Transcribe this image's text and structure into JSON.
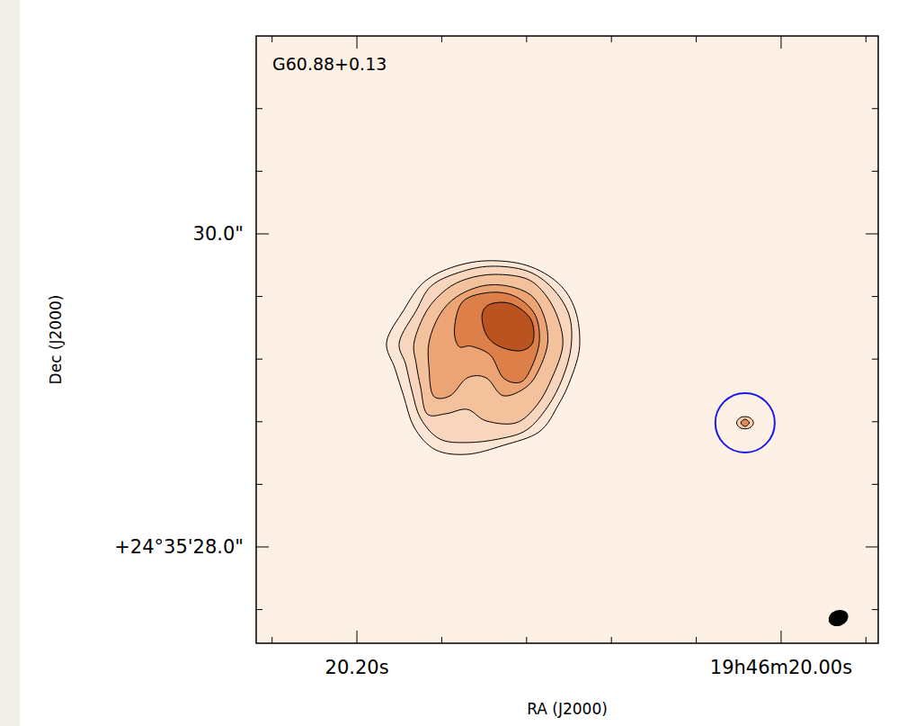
{
  "chart_data": {
    "type": "contour",
    "title": "G60.88+0.13",
    "x_label": "RA (J2000)",
    "y_label": "Dec (J2000)",
    "xlim": [
      20.2475,
      19.9542
    ],
    "ylim": [
      27.385,
      31.264
    ],
    "xticks": [
      {
        "value": 20.2,
        "label": "20.20s"
      },
      {
        "value": 20.0,
        "label": "19h46m20.00s"
      }
    ],
    "xticks_minor": [
      20.24,
      20.16,
      20.12,
      20.08,
      20.04,
      19.96
    ],
    "yticks": [
      {
        "value": 28.0,
        "label": "+24°35'28.0\""
      },
      {
        "value": 30.0,
        "label": "30.0\""
      }
    ],
    "yticks_minor": [
      27.6,
      28.4,
      28.8,
      29.2,
      29.6,
      30.4,
      30.8
    ],
    "contours": [
      {
        "color": "#fbe6d6",
        "ra": [
          20.186,
          20.178,
          20.169,
          20.156,
          20.139,
          20.12,
          20.105,
          20.097,
          20.095,
          20.099,
          20.105,
          20.114,
          20.131,
          20.148,
          20.163,
          20.173,
          20.178,
          20.182
        ],
        "dec": [
          29.31,
          29.511,
          29.684,
          29.782,
          29.828,
          29.799,
          29.684,
          29.511,
          29.282,
          29.08,
          28.908,
          28.736,
          28.649,
          28.592,
          28.621,
          28.764,
          28.966,
          29.138
        ]
      },
      {
        "color": "#f8d6bd",
        "ra": [
          20.18,
          20.172,
          20.165,
          20.152,
          20.137,
          20.12,
          20.108,
          20.1,
          20.099,
          20.103,
          20.11,
          20.12,
          20.133,
          20.148,
          20.161,
          20.17,
          20.174,
          20.177
        ],
        "dec": [
          29.31,
          29.511,
          29.667,
          29.753,
          29.793,
          29.764,
          29.655,
          29.483,
          29.282,
          29.08,
          28.897,
          28.747,
          28.69,
          28.667,
          28.69,
          28.822,
          28.994,
          29.167
        ]
      },
      {
        "color": "#f4c19d",
        "ra": [
          20.173,
          20.167,
          20.158,
          20.148,
          20.135,
          20.12,
          20.111,
          20.105,
          20.103,
          20.108,
          20.115,
          20.125,
          20.139,
          20.148,
          20.158,
          20.167,
          20.17,
          20.172
        ],
        "dec": [
          29.31,
          29.511,
          29.644,
          29.713,
          29.741,
          29.713,
          29.609,
          29.454,
          29.282,
          29.08,
          28.908,
          28.793,
          28.805,
          28.879,
          28.851,
          28.851,
          29.023,
          29.167
        ]
      },
      {
        "color": "#eda475",
        "ra": [
          20.166,
          20.161,
          20.153,
          20.141,
          20.129,
          20.118,
          20.112,
          20.11,
          20.114,
          20.12,
          20.131,
          20.139,
          20.148,
          20.156,
          20.164,
          20.166
        ],
        "dec": [
          29.31,
          29.483,
          29.598,
          29.667,
          29.667,
          29.609,
          29.483,
          29.31,
          29.138,
          29.023,
          28.966,
          29.08,
          29.08,
          28.966,
          28.966,
          29.138
        ]
      },
      {
        "color": "#dc7f48",
        "ra": [
          20.154,
          20.15,
          20.137,
          20.125,
          20.116,
          20.114,
          20.118,
          20.123,
          20.131,
          20.137,
          20.146,
          20.152
        ],
        "dec": [
          29.397,
          29.569,
          29.626,
          29.598,
          29.483,
          29.31,
          29.138,
          29.052,
          29.08,
          29.224,
          29.282,
          29.282
        ]
      },
      {
        "color": "#b9531f",
        "ra": [
          20.141,
          20.137,
          20.127,
          20.118,
          20.117,
          20.123,
          20.133,
          20.139
        ],
        "dec": [
          29.483,
          29.552,
          29.552,
          29.454,
          29.31,
          29.253,
          29.282,
          29.356
        ]
      }
    ],
    "compact_contours": [
      {
        "color": "#f6ccac",
        "ra": [
          20.013,
          20.015,
          20.019,
          20.021,
          20.019,
          20.015
        ],
        "dec": [
          28.793,
          28.828,
          28.828,
          28.793,
          28.759,
          28.759
        ]
      },
      {
        "color": "#e38c57",
        "ra": [
          20.015,
          20.017,
          20.019,
          20.017
        ],
        "dec": [
          28.793,
          28.816,
          28.793,
          28.77
        ]
      }
    ],
    "circle": {
      "color": "#1a1ae6",
      "ra": 20.017,
      "dec": 28.793,
      "radius": 0.19
    },
    "beam": {
      "color": "#000000",
      "ra": 19.973,
      "dec": 27.546,
      "major": 0.13,
      "minor": 0.1
    }
  }
}
